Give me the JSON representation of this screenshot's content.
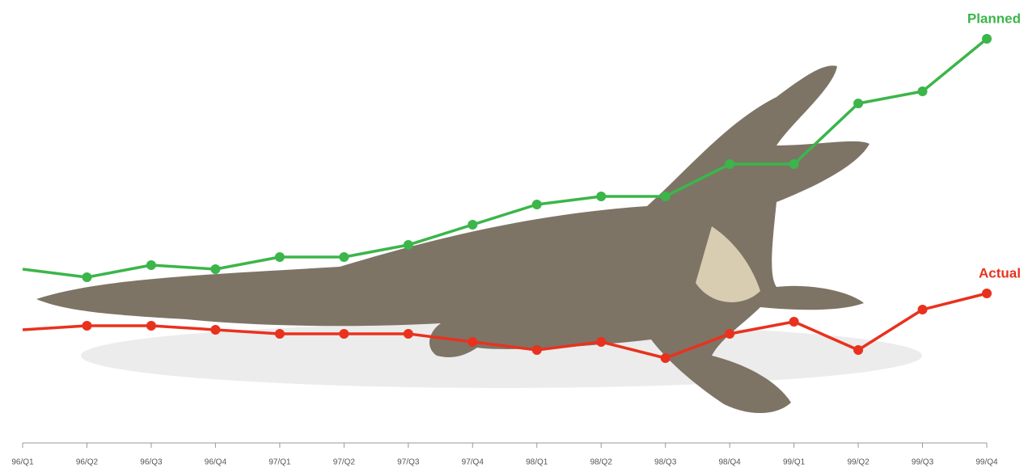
{
  "chart_data": {
    "type": "line",
    "categories": [
      "96/Q1",
      "96/Q2",
      "96/Q3",
      "96/Q4",
      "97/Q1",
      "97/Q2",
      "97/Q3",
      "97/Q4",
      "98/Q1",
      "98/Q2",
      "98/Q3",
      "98/Q4",
      "99/Q1",
      "99/Q2",
      "99/Q3",
      "99/Q4"
    ],
    "series": [
      {
        "name": "Planned",
        "color": "#3cb54a",
        "values": [
          43,
          41,
          44,
          43,
          46,
          46,
          49,
          54,
          59,
          61,
          61,
          69,
          69,
          84,
          87,
          100
        ]
      },
      {
        "name": "Actual",
        "color": "#e8321e",
        "values": [
          28,
          29,
          29,
          28,
          27,
          27,
          27,
          25,
          23,
          25,
          21,
          27,
          30,
          23,
          33,
          37
        ]
      }
    ],
    "ylim": [
      0,
      100
    ]
  }
}
